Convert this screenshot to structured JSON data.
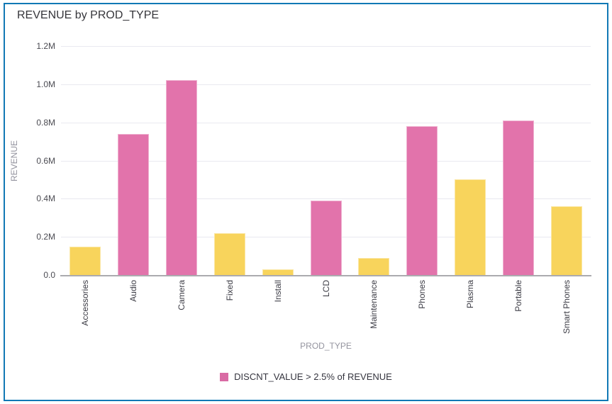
{
  "window": {
    "background": "#ffffff",
    "border_color": "#1179b5"
  },
  "chart_data": {
    "type": "bar",
    "title": "REVENUE by PROD_TYPE",
    "xlabel": "PROD_TYPE",
    "ylabel": "REVENUE",
    "categories": [
      "Accessories",
      "Audio",
      "Camera",
      "Fixed",
      "Install",
      "LCD",
      "Maintenance",
      "Phones",
      "Plasma",
      "Portable",
      "Smart Phones"
    ],
    "values_millions": [
      0.15,
      0.74,
      1.02,
      0.22,
      0.03,
      0.39,
      0.09,
      0.78,
      0.5,
      0.81,
      0.36
    ],
    "highlighted": [
      false,
      true,
      true,
      false,
      false,
      true,
      false,
      true,
      false,
      true,
      false
    ],
    "ylim": [
      0,
      1.2
    ],
    "yticks": [
      {
        "label": "0.0",
        "value": 0
      },
      {
        "label": "0.2M",
        "value": 0.2
      },
      {
        "label": "0.4M",
        "value": 0.4
      },
      {
        "label": "0.6M",
        "value": 0.6
      },
      {
        "label": "0.8M",
        "value": 0.8
      },
      {
        "label": "1.0M",
        "value": 1.0
      },
      {
        "label": "1.2M",
        "value": 1.2
      }
    ],
    "grid": "horizontal",
    "legend": {
      "position": "bottom",
      "label": "DISCNT_VALUE > 2.5% of REVENUE",
      "swatch_color": "#d96ba4"
    },
    "colors": {
      "highlight_bar": "#e273ab",
      "default_bar": "#f8d45c",
      "gridline": "#e9e9f0",
      "axis_line": "#ababaf"
    }
  }
}
